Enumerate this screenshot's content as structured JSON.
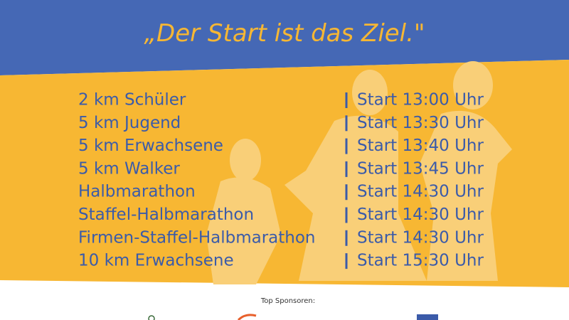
{
  "title": "„Der Start ist das Ziel.\"",
  "schedule": {
    "rows": [
      {
        "event": "2 km Schüler",
        "time": "Start 13:00 Uhr"
      },
      {
        "event": "5 km Jugend",
        "time": "Start 13:30 Uhr"
      },
      {
        "event": "5 km Erwachsene",
        "time": "Start 13:40 Uhr"
      },
      {
        "event": "5 km Walker",
        "time": "Start 13:45 Uhr"
      },
      {
        "event": "Halbmarathon",
        "time": "Start 14:30 Uhr"
      },
      {
        "event": "Staffel-Halbmarathon",
        "time": "Start 14:30 Uhr"
      },
      {
        "event": "Firmen-Staffel-Halbmarathon",
        "time": "Start 14:30 Uhr"
      },
      {
        "event": "10 km Erwachsene",
        "time": "Start 15:30 Uhr"
      }
    ]
  },
  "sponsors": {
    "label": "Top Sponsoren:"
  }
}
